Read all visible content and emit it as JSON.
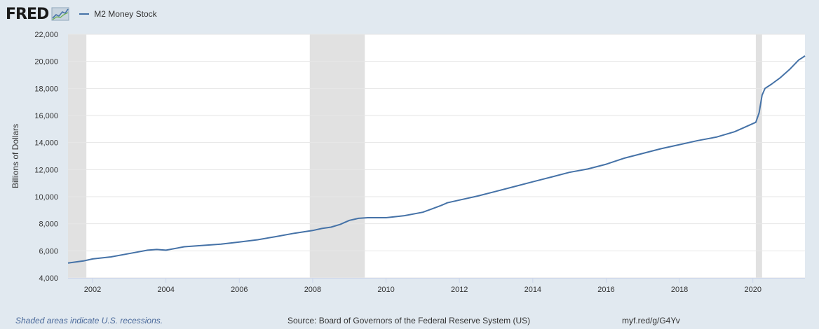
{
  "header": {
    "logo_text": "FRED",
    "legend_label": "M2 Money Stock"
  },
  "footer": {
    "note": "Shaded areas indicate U.S. recessions.",
    "source": "Source: Board of Governors of the Federal Reserve System (US)",
    "url": "myf.red/g/G4Yv"
  },
  "colors": {
    "series": "#4572a7",
    "recession": "#e1e1e1",
    "background": "#e1e9f0",
    "plot_bg": "#ffffff",
    "grid": "#e6e6e6"
  },
  "chart_data": {
    "type": "line",
    "ylabel": "Billions of Dollars",
    "xlim": [
      2001.33,
      2021.42
    ],
    "ylim": [
      4000,
      22000
    ],
    "yticks": [
      4000,
      6000,
      8000,
      10000,
      12000,
      14000,
      16000,
      18000,
      20000,
      22000
    ],
    "ytick_labels": [
      "4,000",
      "6,000",
      "8,000",
      "10,000",
      "12,000",
      "14,000",
      "16,000",
      "18,000",
      "20,000",
      "22,000"
    ],
    "xticks": [
      2002,
      2004,
      2006,
      2008,
      2010,
      2012,
      2014,
      2016,
      2018,
      2020
    ],
    "xtick_labels": [
      "2002",
      "2004",
      "2006",
      "2008",
      "2010",
      "2012",
      "2014",
      "2016",
      "2018",
      "2020"
    ],
    "grid": true,
    "legend_position": "top-left",
    "recessions": [
      [
        2001.33,
        2001.83
      ],
      [
        2007.92,
        2009.42
      ],
      [
        2020.08,
        2020.25
      ]
    ],
    "series": [
      {
        "name": "M2 Money Stock",
        "x": [
          2001.33,
          2001.75,
          2002.0,
          2002.5,
          2003.0,
          2003.5,
          2003.75,
          2004.0,
          2004.5,
          2005.0,
          2005.5,
          2006.0,
          2006.5,
          2007.0,
          2007.5,
          2008.0,
          2008.25,
          2008.5,
          2008.75,
          2009.0,
          2009.25,
          2009.5,
          2010.0,
          2010.5,
          2011.0,
          2011.25,
          2011.5,
          2011.67,
          2012.0,
          2012.5,
          2013.0,
          2013.5,
          2014.0,
          2014.5,
          2015.0,
          2015.5,
          2016.0,
          2016.5,
          2017.0,
          2017.5,
          2018.0,
          2018.5,
          2019.0,
          2019.5,
          2019.75,
          2020.0,
          2020.08,
          2020.17,
          2020.25,
          2020.33,
          2020.5,
          2020.75,
          2021.0,
          2021.25,
          2021.42
        ],
        "values": [
          5100,
          5250,
          5400,
          5550,
          5800,
          6050,
          6100,
          6050,
          6300,
          6400,
          6500,
          6650,
          6820,
          7050,
          7300,
          7500,
          7650,
          7750,
          7950,
          8250,
          8400,
          8450,
          8450,
          8600,
          8850,
          9100,
          9350,
          9550,
          9750,
          10050,
          10400,
          10750,
          11100,
          11450,
          11800,
          12050,
          12400,
          12850,
          13200,
          13550,
          13850,
          14150,
          14400,
          14800,
          15100,
          15400,
          15500,
          16200,
          17500,
          18000,
          18300,
          18800,
          19400,
          20100,
          20400
        ]
      }
    ]
  }
}
